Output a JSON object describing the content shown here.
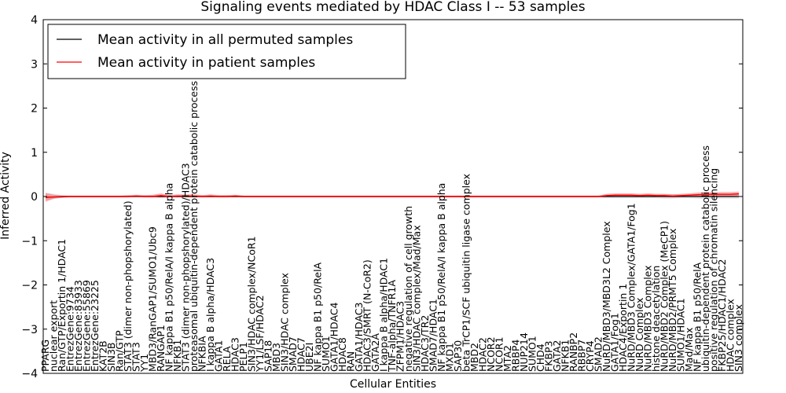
{
  "chart_data": {
    "type": "line",
    "title": "Signaling events mediated by HDAC Class I -- 53 samples",
    "xlabel": "Cellular Entities",
    "ylabel": "Inferred Activity",
    "ylim": [
      -4,
      4
    ],
    "yticks": [
      -4,
      -3,
      -2,
      -1,
      0,
      1,
      2,
      3,
      4
    ],
    "grid": false,
    "legend_position": "top-left",
    "categories": [
      "PPARG",
      "nuclear export",
      "Ran/GTP/Exportin 1/HDAC1",
      "EntrezGene:9734",
      "EntrezGene:83933",
      "EntrezGene:55869",
      "EntrezGene:23225",
      "KAT2B",
      "SIN3B",
      "Ran/GTP",
      "STAT3 (dimer non-phopshorylated)",
      "STAT3",
      "YY1",
      "MBD3/RanGAP1/SUMO1/Ubc9",
      "RANGAP1",
      "NF kappa B1 p50/RelA/I kappa B alpha",
      "NFKB1",
      "STAT3 (dimer non-phopshorylated)/HDAC3",
      "proteasomal ubiquitin-dependent protein catabolic process",
      "NFKBIA",
      "I kappa B alpha/HDAC3",
      "GATA1",
      "RELA",
      "HDAC3",
      "PELP1",
      "SIN3/HDAC complex/NCoR1",
      "YY1/LSF/HDAC2",
      "SAP18",
      "MBD3",
      "SIN3/HDAC complex",
      "SMAD7",
      "HDAC7",
      "UBE2I",
      "NF kappa B1 p50/RelA",
      "SUMO1",
      "GATA1/HDAC4",
      "HDAC8",
      "RAN",
      "GATA1/HDAC3",
      "HDAC3/SMRT (N-CoR2)",
      "GATA2A",
      "I kappa B alpha/HDAC1",
      "TNF-alpha/TNFR1A",
      "ZFPM1/HDAC3",
      "negative regulation of cell growth",
      "SIN3/HDAC complex/Mad/Max",
      "HDAC3/TR2",
      "SMAD7/HDAC1",
      "NF kappa B1 p50/RelA/I kappa B alpha",
      "MXD1",
      "SAP30",
      "beta TrCP1/SCF ubiquitin ligase complex",
      "MBD2",
      "HDAC2",
      "NCOR2",
      "NCOR1",
      "MTA2",
      "RBBP4",
      "NUP214",
      "SUMO1",
      "CHD4",
      "FKBP3",
      "GATA2",
      "NFKB1",
      "RANBP2",
      "RBBP7",
      "CRYP4",
      "SMAD2",
      "NuRD/MBD3/MBD3L2 Complex",
      "GATA1/Fog1",
      "HDAC4/Exportin 1",
      "NuRD/MBD3 Complex/GATA1/Fog1",
      "NuRD Complex",
      "NuRD/MBD3 Complex",
      "histone deacetylation",
      "NuRD/MBD2 Complex (MeCP1)",
      "NuRD/MBD2/PRMT5 Complex",
      "SUMO1/HDAC1",
      "Mad/Max",
      "NF kappa B1 p50/RelA",
      "ubiquitin-dependent protein catabolic process",
      "positive regulation of chromatin silencing",
      "FKBP25/HDAC1/HDAC2",
      "HDAC complex",
      "SIN3 complex"
    ],
    "series": [
      {
        "name": "Mean activity in all permuted samples",
        "color": "#000000",
        "values": [
          -0.02,
          -0.01,
          -0.01,
          0.0,
          0.0,
          0.0,
          0.0,
          0.0,
          0.0,
          0.0,
          0.0,
          0.0,
          0.0,
          0.0,
          0.0,
          0.0,
          0.0,
          0.0,
          0.0,
          0.0,
          0.0,
          0.0,
          0.0,
          0.0,
          0.0,
          0.0,
          0.0,
          0.0,
          0.0,
          0.0,
          0.0,
          0.0,
          0.0,
          0.0,
          0.0,
          0.0,
          0.0,
          0.0,
          0.0,
          0.0,
          0.0,
          0.0,
          0.0,
          0.0,
          0.0,
          0.0,
          0.0,
          0.0,
          0.0,
          0.0,
          0.0,
          0.0,
          0.0,
          0.0,
          0.0,
          0.0,
          0.0,
          0.0,
          0.0,
          0.0,
          0.0,
          0.0,
          0.0,
          0.0,
          0.0,
          0.0,
          0.0,
          0.0,
          0.0,
          0.0,
          0.0,
          0.0,
          0.0,
          0.0,
          0.0,
          0.0,
          0.0,
          0.0,
          0.0,
          0.0,
          0.0,
          0.0,
          0.0,
          0.0,
          0.0
        ],
        "band_low": [
          -0.08,
          -0.06,
          -0.03,
          -0.02,
          -0.02,
          -0.02,
          -0.02,
          -0.02,
          -0.02,
          -0.02,
          -0.02,
          -0.02,
          -0.02,
          -0.02,
          -0.03,
          -0.02,
          -0.02,
          -0.02,
          -0.02,
          -0.02,
          -0.02,
          -0.02,
          -0.02,
          -0.02,
          -0.02,
          -0.02,
          -0.02,
          -0.02,
          -0.02,
          -0.02,
          -0.02,
          -0.02,
          -0.02,
          -0.02,
          -0.02,
          -0.02,
          -0.02,
          -0.02,
          -0.02,
          -0.02,
          -0.02,
          -0.02,
          -0.02,
          -0.02,
          -0.02,
          -0.02,
          -0.02,
          -0.02,
          -0.02,
          -0.02,
          -0.02,
          -0.02,
          -0.02,
          -0.02,
          -0.02,
          -0.02,
          -0.02,
          -0.02,
          -0.02,
          -0.02,
          -0.02,
          -0.02,
          -0.02,
          -0.02,
          -0.02,
          -0.02,
          -0.02,
          -0.02,
          -0.04,
          -0.04,
          -0.04,
          -0.04,
          -0.04,
          -0.04,
          -0.04,
          -0.05,
          -0.05,
          -0.04,
          -0.04,
          -0.05,
          -0.06,
          -0.05,
          -0.05,
          -0.05,
          -0.05
        ],
        "band_high": [
          0.08,
          0.06,
          0.03,
          0.02,
          0.02,
          0.02,
          0.02,
          0.02,
          0.02,
          0.02,
          0.02,
          0.02,
          0.02,
          0.02,
          0.03,
          0.02,
          0.02,
          0.02,
          0.02,
          0.02,
          0.02,
          0.02,
          0.02,
          0.02,
          0.02,
          0.02,
          0.02,
          0.02,
          0.02,
          0.02,
          0.02,
          0.02,
          0.02,
          0.02,
          0.02,
          0.02,
          0.02,
          0.02,
          0.02,
          0.02,
          0.02,
          0.02,
          0.02,
          0.02,
          0.02,
          0.02,
          0.02,
          0.02,
          0.02,
          0.02,
          0.02,
          0.02,
          0.02,
          0.02,
          0.02,
          0.02,
          0.02,
          0.02,
          0.02,
          0.02,
          0.02,
          0.02,
          0.02,
          0.02,
          0.02,
          0.02,
          0.02,
          0.02,
          0.04,
          0.04,
          0.04,
          0.04,
          0.04,
          0.04,
          0.04,
          0.05,
          0.05,
          0.04,
          0.04,
          0.05,
          0.06,
          0.05,
          0.05,
          0.05,
          0.05
        ]
      },
      {
        "name": "Mean activity in patient samples",
        "color": "#ff0000",
        "values": [
          -0.02,
          -0.01,
          0.0,
          0.0,
          0.0,
          0.0,
          0.0,
          0.0,
          0.0,
          0.0,
          0.0,
          0.01,
          0.0,
          0.0,
          0.02,
          0.0,
          0.01,
          0.01,
          0.01,
          0.0,
          0.01,
          0.0,
          0.0,
          0.01,
          0.0,
          0.0,
          0.0,
          0.0,
          0.0,
          0.0,
          0.0,
          0.0,
          0.0,
          0.0,
          0.0,
          0.0,
          0.0,
          0.0,
          0.0,
          0.0,
          0.0,
          0.0,
          0.0,
          0.0,
          0.0,
          0.0,
          0.0,
          0.0,
          0.0,
          0.0,
          0.0,
          0.0,
          0.0,
          0.0,
          0.0,
          0.0,
          0.0,
          0.0,
          0.0,
          0.0,
          0.0,
          0.0,
          0.0,
          0.0,
          0.0,
          0.0,
          0.0,
          0.0,
          0.02,
          0.03,
          0.03,
          0.03,
          0.02,
          0.03,
          0.02,
          0.02,
          0.01,
          0.02,
          0.03,
          0.04,
          0.05,
          0.05,
          0.05,
          0.05,
          0.06
        ],
        "band_low": [
          -0.12,
          -0.05,
          -0.02,
          -0.02,
          -0.02,
          -0.02,
          -0.02,
          -0.02,
          -0.02,
          -0.02,
          -0.02,
          -0.01,
          -0.02,
          -0.02,
          -0.02,
          -0.02,
          -0.02,
          -0.02,
          -0.02,
          -0.02,
          -0.02,
          -0.02,
          -0.02,
          -0.02,
          -0.02,
          -0.02,
          -0.02,
          -0.02,
          -0.02,
          -0.02,
          -0.02,
          -0.02,
          -0.02,
          -0.02,
          -0.02,
          -0.02,
          -0.02,
          -0.02,
          -0.02,
          -0.02,
          -0.02,
          -0.02,
          -0.02,
          -0.02,
          -0.02,
          -0.02,
          -0.02,
          -0.02,
          -0.02,
          -0.02,
          -0.02,
          -0.02,
          -0.02,
          -0.02,
          -0.02,
          -0.02,
          -0.02,
          -0.02,
          -0.02,
          -0.02,
          -0.02,
          -0.02,
          -0.02,
          -0.02,
          -0.02,
          -0.02,
          -0.02,
          -0.02,
          -0.01,
          0.0,
          0.0,
          0.0,
          -0.01,
          0.0,
          -0.01,
          -0.01,
          -0.02,
          -0.01,
          0.0,
          0.0,
          0.01,
          0.01,
          0.01,
          0.01,
          0.02
        ],
        "band_high": [
          0.08,
          0.04,
          0.02,
          0.02,
          0.02,
          0.02,
          0.02,
          0.02,
          0.02,
          0.02,
          0.03,
          0.04,
          0.03,
          0.04,
          0.07,
          0.03,
          0.05,
          0.05,
          0.05,
          0.03,
          0.05,
          0.03,
          0.03,
          0.04,
          0.02,
          0.02,
          0.02,
          0.02,
          0.02,
          0.02,
          0.02,
          0.02,
          0.02,
          0.02,
          0.02,
          0.02,
          0.02,
          0.02,
          0.02,
          0.02,
          0.02,
          0.02,
          0.02,
          0.02,
          0.02,
          0.02,
          0.02,
          0.02,
          0.02,
          0.02,
          0.02,
          0.02,
          0.02,
          0.02,
          0.02,
          0.02,
          0.02,
          0.02,
          0.02,
          0.02,
          0.02,
          0.02,
          0.02,
          0.02,
          0.02,
          0.02,
          0.02,
          0.02,
          0.06,
          0.07,
          0.07,
          0.07,
          0.06,
          0.07,
          0.06,
          0.06,
          0.05,
          0.06,
          0.07,
          0.09,
          0.1,
          0.1,
          0.1,
          0.1,
          0.11
        ]
      }
    ]
  }
}
